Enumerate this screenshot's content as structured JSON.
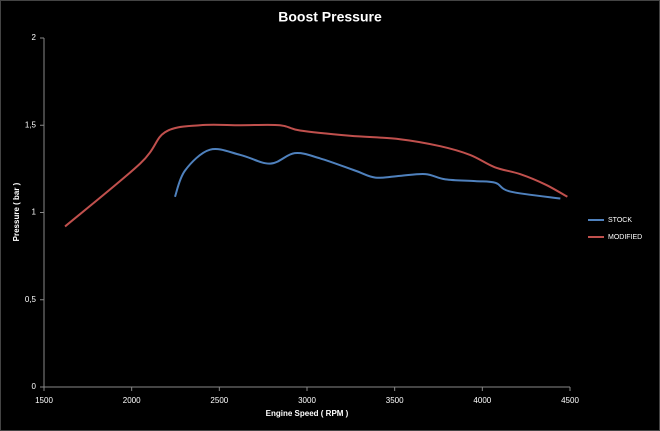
{
  "chart_data": {
    "type": "line",
    "title": "Boost Pressure",
    "x_label": "Engine Speed ( RPM )",
    "y_label": "Pressure ( bar )",
    "xlim": [
      1500,
      4500
    ],
    "xticks": [
      1500,
      2000,
      2500,
      3000,
      3500,
      4000,
      4500
    ],
    "ylim": [
      0,
      2
    ],
    "yticks": [
      0,
      {
        "value": 0.5,
        "label": "0,5"
      },
      1,
      {
        "value": 1.5,
        "label": "1,5"
      },
      2
    ],
    "legend": "right",
    "series": [
      {
        "name": "STOCK",
        "color": "#4f81bd",
        "x": [
          2247,
          2304,
          2447,
          2620,
          2790,
          2930,
          3075,
          3275,
          3390,
          3530,
          3675,
          3790,
          3960,
          4075,
          4160,
          4445
        ],
        "values": [
          1.09,
          1.24,
          1.36,
          1.33,
          1.28,
          1.34,
          1.31,
          1.24,
          1.2,
          1.21,
          1.22,
          1.19,
          1.18,
          1.17,
          1.12,
          1.08
        ]
      },
      {
        "name": "MODIFIED",
        "color": "#c0504d",
        "x": [
          1620,
          2048,
          2190,
          2390,
          2620,
          2846,
          2960,
          3245,
          3530,
          3760,
          3930,
          4070,
          4215,
          4360,
          4485
        ],
        "values": [
          0.92,
          1.28,
          1.46,
          1.5,
          1.5,
          1.5,
          1.47,
          1.44,
          1.42,
          1.38,
          1.33,
          1.26,
          1.22,
          1.16,
          1.09
        ]
      }
    ]
  }
}
